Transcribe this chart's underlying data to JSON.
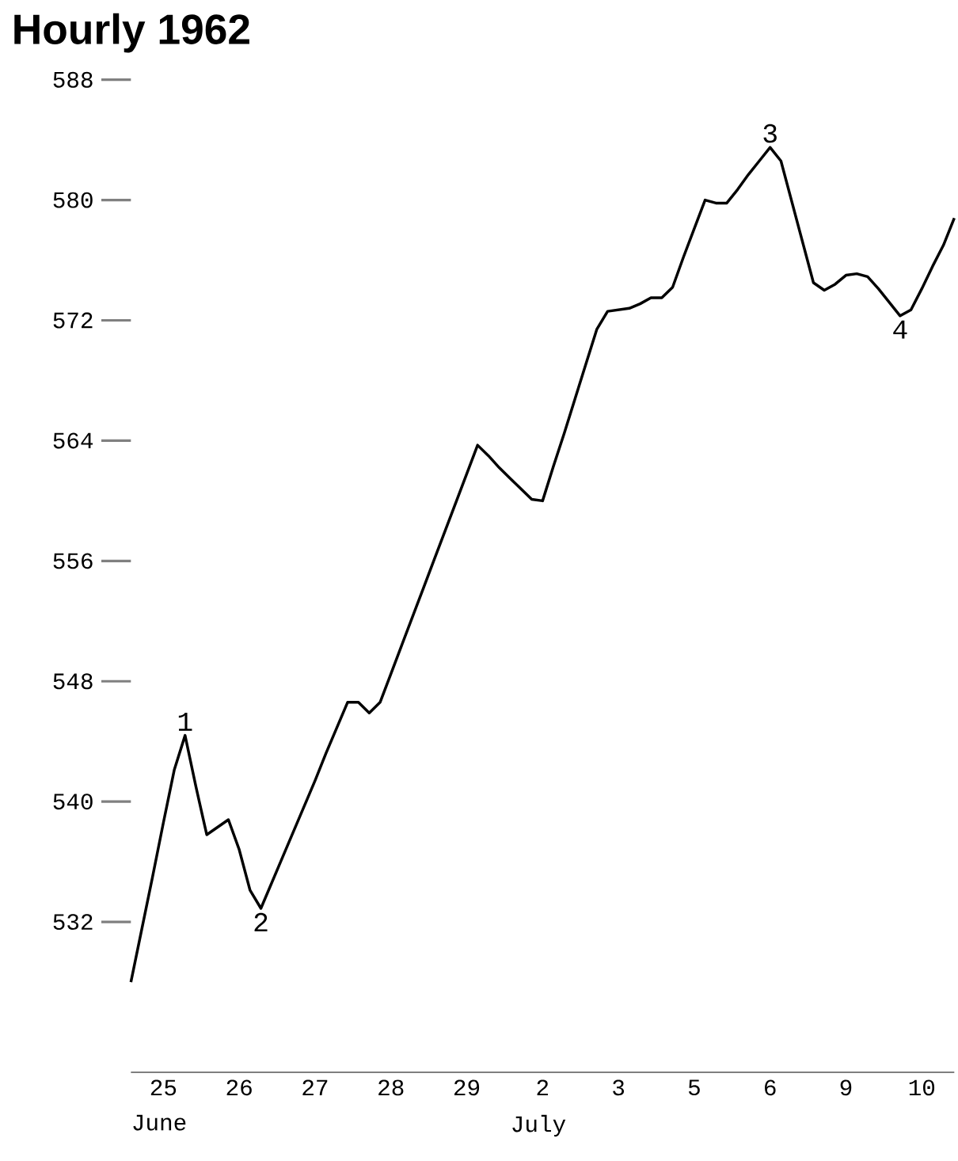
{
  "chart_data": {
    "type": "line",
    "title": "Hourly 1962",
    "categories": [
      null,
      null,
      null,
      "25",
      null,
      null,
      null,
      null,
      null,
      null,
      "26",
      null,
      null,
      null,
      null,
      null,
      null,
      "27",
      null,
      null,
      null,
      null,
      null,
      null,
      "28",
      null,
      null,
      null,
      null,
      null,
      null,
      "29",
      null,
      null,
      null,
      null,
      null,
      null,
      "2",
      null,
      null,
      null,
      null,
      null,
      null,
      "3",
      null,
      null,
      null,
      null,
      null,
      null,
      "5",
      null,
      null,
      null,
      null,
      null,
      null,
      "6",
      null,
      null,
      null,
      null,
      null,
      null,
      "9",
      null,
      null,
      null,
      null,
      null,
      null,
      "10",
      null,
      null,
      null
    ],
    "series": [
      {
        "color": "#000000",
        "values": [
          528.0,
          531.5,
          535.0,
          538.6,
          542.1,
          544.4,
          541.0,
          537.8,
          538.3,
          538.8,
          536.8,
          534.1,
          532.9,
          534.6,
          536.3,
          538.0,
          539.7,
          541.4,
          543.2,
          544.9,
          546.6,
          546.6,
          545.9,
          546.6,
          548.5,
          550.4,
          552.3,
          554.2,
          556.1,
          558.0,
          559.9,
          561.8,
          563.7,
          563.0,
          562.2,
          561.5,
          560.8,
          560.1,
          560.0,
          562.3,
          564.5,
          566.8,
          569.1,
          571.4,
          572.6,
          572.7,
          572.8,
          573.1,
          573.5,
          573.5,
          574.2,
          576.2,
          578.1,
          580.0,
          579.8,
          579.8,
          580.7,
          581.7,
          582.6,
          583.5,
          582.6,
          579.9,
          577.2,
          574.5,
          574.0,
          574.4,
          575.0,
          575.1,
          574.9,
          574.1,
          573.2,
          572.3,
          572.7,
          574.1,
          575.6,
          577.0,
          578.8
        ]
      }
    ],
    "marker": "none",
    "line_style": "solid",
    "ylim": [
      522,
      588
    ],
    "yticks": [
      532,
      540,
      548,
      556,
      564,
      572,
      580,
      588
    ],
    "annotations": [
      {
        "text": "1",
        "y": 544.4
      },
      {
        "text": "2",
        "y": 532.9
      },
      {
        "text": "3",
        "y": 583.5
      },
      {
        "text": "4",
        "y": 572.3
      },
      "June",
      "July"
    ]
  }
}
